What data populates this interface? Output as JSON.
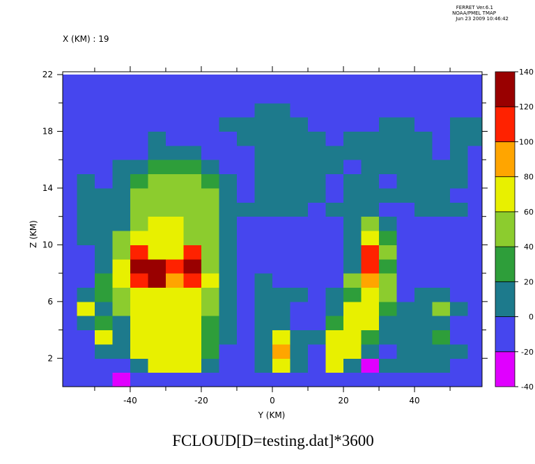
{
  "chart_data": {
    "type": "contour",
    "title": "FCLOUD[D=testing.dat]*3600",
    "subtitle": "X (KM) : 19",
    "stamp": [
      "FERRET  Ver.6.1",
      "NOAA/PMEL TMAP",
      "Jun 23 2009 10:46:42"
    ],
    "x_label": "Y (KM)",
    "y_label": "Z (KM)",
    "xlim": [
      -59,
      59
    ],
    "ylim": [
      0,
      22.2
    ],
    "xticks": [
      -40,
      -20,
      0,
      20,
      40
    ],
    "xminor": [
      -50,
      -30,
      -10,
      10,
      30,
      50
    ],
    "yticks": [
      2,
      6,
      10,
      14,
      18,
      22
    ],
    "yminor": [
      4,
      8,
      12,
      16,
      20
    ],
    "cell_width": 5,
    "cell_height": 1,
    "x": [
      -57.5,
      -52.5,
      -47.5,
      -42.5,
      -37.5,
      -32.5,
      -27.5,
      -22.5,
      -17.5,
      -12.5,
      -7.5,
      -2.5,
      2.5,
      7.5,
      12.5,
      17.5,
      22.5,
      27.5,
      32.5,
      37.5,
      42.5,
      47.5,
      52.5,
      57.5
    ],
    "y": [
      0.5,
      1.5,
      2.5,
      3.5,
      4.5,
      5.5,
      6.5,
      7.5,
      8.5,
      9.5,
      10.5,
      11.5,
      12.5,
      13.5,
      14.5,
      15.5,
      16.5,
      17.5,
      18.5,
      19.5,
      20.5,
      21.5
    ],
    "z": [
      [
        -10,
        -10,
        -10,
        -30,
        -10,
        -10,
        -10,
        -10,
        -10,
        -10,
        -10,
        -10,
        -10,
        -10,
        -10,
        -10,
        -10,
        -10,
        -10,
        -10,
        -10,
        -10,
        -10,
        -10
      ],
      [
        -10,
        -10,
        -10,
        -10,
        10,
        70,
        70,
        70,
        10,
        -10,
        -10,
        10,
        70,
        10,
        -10,
        70,
        10,
        -30,
        10,
        10,
        10,
        10,
        -10,
        -10
      ],
      [
        -10,
        -10,
        10,
        10,
        70,
        70,
        70,
        70,
        30,
        -10,
        -10,
        10,
        90,
        10,
        -10,
        70,
        70,
        10,
        -10,
        10,
        10,
        10,
        10,
        -10
      ],
      [
        -10,
        -10,
        70,
        10,
        70,
        70,
        70,
        70,
        30,
        10,
        -10,
        10,
        70,
        10,
        10,
        70,
        70,
        30,
        10,
        10,
        10,
        30,
        -10,
        -10
      ],
      [
        -10,
        10,
        30,
        10,
        70,
        70,
        70,
        70,
        30,
        10,
        -10,
        10,
        10,
        -10,
        -10,
        30,
        70,
        70,
        10,
        10,
        10,
        10,
        -10,
        -10
      ],
      [
        -10,
        70,
        10,
        50,
        70,
        70,
        70,
        70,
        50,
        10,
        -10,
        10,
        10,
        -10,
        -10,
        10,
        70,
        70,
        30,
        10,
        10,
        50,
        10,
        -10
      ],
      [
        -10,
        10,
        30,
        50,
        70,
        70,
        70,
        70,
        50,
        10,
        -10,
        10,
        10,
        10,
        -10,
        10,
        30,
        70,
        50,
        -10,
        10,
        10,
        -10,
        -10
      ],
      [
        -10,
        -10,
        30,
        70,
        110,
        130,
        90,
        110,
        70,
        10,
        -10,
        10,
        -10,
        -10,
        -10,
        -10,
        50,
        90,
        50,
        -10,
        -10,
        -10,
        -10,
        -10
      ],
      [
        -10,
        -10,
        10,
        70,
        130,
        130,
        110,
        130,
        50,
        10,
        -10,
        -10,
        -10,
        -10,
        -10,
        -10,
        10,
        110,
        30,
        -10,
        -10,
        -10,
        -10,
        -10
      ],
      [
        -10,
        -10,
        10,
        50,
        110,
        70,
        70,
        110,
        50,
        10,
        -10,
        -10,
        -10,
        -10,
        -10,
        -10,
        10,
        110,
        50,
        -10,
        -10,
        -10,
        -10,
        -10
      ],
      [
        -10,
        10,
        10,
        50,
        70,
        70,
        70,
        50,
        50,
        10,
        -10,
        -10,
        -10,
        -10,
        -10,
        -10,
        10,
        70,
        30,
        -10,
        -10,
        -10,
        -10,
        -10
      ],
      [
        -10,
        10,
        10,
        10,
        50,
        70,
        70,
        50,
        50,
        10,
        -10,
        -10,
        -10,
        -10,
        -10,
        -10,
        10,
        50,
        10,
        -10,
        -10,
        -10,
        -10,
        -10
      ],
      [
        -10,
        10,
        10,
        10,
        50,
        50,
        50,
        50,
        50,
        10,
        10,
        10,
        10,
        10,
        -10,
        10,
        10,
        10,
        -10,
        -10,
        10,
        10,
        10,
        -10
      ],
      [
        -10,
        10,
        10,
        10,
        50,
        50,
        50,
        50,
        50,
        10,
        -10,
        10,
        10,
        10,
        10,
        -10,
        10,
        10,
        10,
        10,
        10,
        10,
        -10,
        -10
      ],
      [
        -10,
        10,
        -10,
        10,
        30,
        50,
        50,
        50,
        30,
        10,
        -10,
        10,
        10,
        10,
        10,
        -10,
        10,
        10,
        -10,
        10,
        10,
        10,
        10,
        -10
      ],
      [
        -10,
        -10,
        -10,
        10,
        10,
        30,
        30,
        30,
        10,
        -10,
        -10,
        10,
        10,
        10,
        10,
        10,
        -10,
        10,
        10,
        10,
        10,
        10,
        10,
        -10
      ],
      [
        -10,
        -10,
        -10,
        -10,
        -10,
        10,
        10,
        10,
        -10,
        -10,
        -10,
        10,
        10,
        10,
        10,
        10,
        10,
        10,
        10,
        10,
        10,
        -10,
        10,
        -10
      ],
      [
        -10,
        -10,
        -10,
        -10,
        -10,
        10,
        -10,
        -10,
        -10,
        -10,
        10,
        10,
        10,
        10,
        10,
        -10,
        10,
        10,
        10,
        10,
        10,
        -10,
        10,
        10
      ],
      [
        -10,
        -10,
        -10,
        -10,
        -10,
        -10,
        -10,
        -10,
        -10,
        10,
        10,
        10,
        10,
        10,
        -10,
        -10,
        -10,
        -10,
        10,
        10,
        -10,
        -10,
        10,
        10
      ],
      [
        -10,
        -10,
        -10,
        -10,
        -10,
        -10,
        -10,
        -10,
        -10,
        -10,
        -10,
        10,
        10,
        -10,
        -10,
        -10,
        -10,
        -10,
        -10,
        -10,
        -10,
        -10,
        -10,
        -10
      ],
      [
        -10,
        -10,
        -10,
        -10,
        -10,
        -10,
        -10,
        -10,
        -10,
        -10,
        -10,
        -10,
        -10,
        -10,
        -10,
        -10,
        -10,
        -10,
        -10,
        -10,
        -10,
        -10,
        -10,
        -10
      ],
      [
        -10,
        -10,
        -10,
        -10,
        -10,
        -10,
        -10,
        -10,
        -10,
        -10,
        -10,
        -10,
        -10,
        -10,
        -10,
        -10,
        -10,
        -10,
        -10,
        -10,
        -10,
        -10,
        -10,
        -10
      ]
    ],
    "levels": [
      -40,
      -20,
      0,
      20,
      40,
      60,
      80,
      100,
      120,
      140
    ],
    "level_colors": [
      "#e000ff",
      "#4646ee",
      "#1d7a8c",
      "#2e9e3a",
      "#8ccc2e",
      "#e8f000",
      "#ffa500",
      "#ff2200",
      "#990000"
    ]
  }
}
